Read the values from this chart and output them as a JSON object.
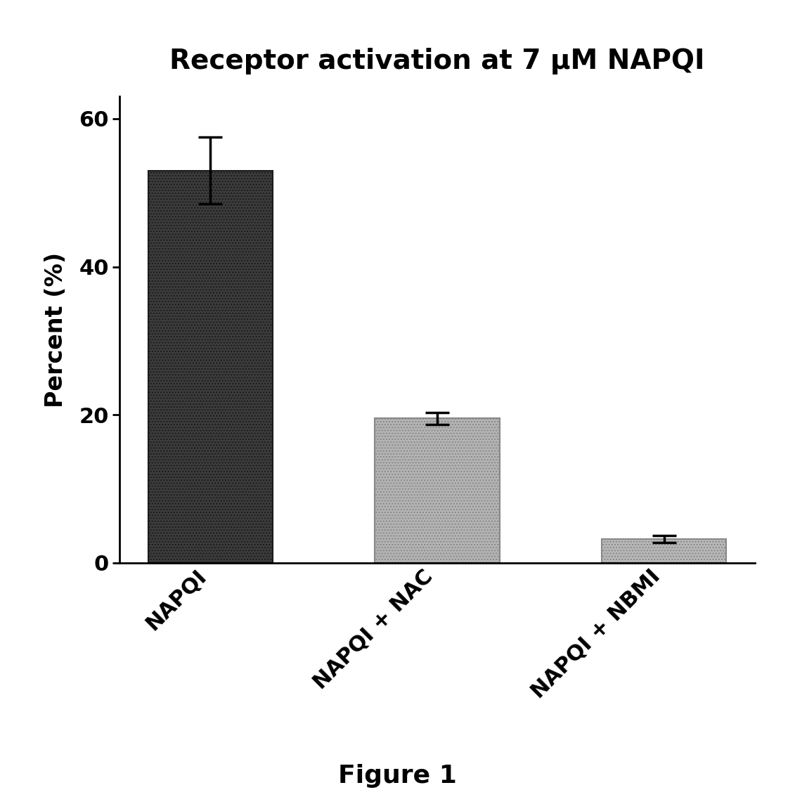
{
  "title": "Receptor activation at 7 μM NAPQI",
  "ylabel": "Percent (%)",
  "categories": [
    "NAPQI",
    "NAPQI + NAC",
    "NAPQI + NBMI"
  ],
  "values": [
    53.0,
    19.5,
    3.2
  ],
  "errors": [
    4.5,
    0.8,
    0.5
  ],
  "bar_colors": [
    "#3a3a3a",
    "#b0b0b0",
    "#b8b8b8"
  ],
  "bar_edgecolors": [
    "#000000",
    "#000000",
    "#000000"
  ],
  "ylim": [
    0,
    63
  ],
  "yticks": [
    0,
    20,
    40,
    60
  ],
  "figure_caption": "Figure 1",
  "title_fontsize": 28,
  "ylabel_fontsize": 24,
  "tick_fontsize": 22,
  "caption_fontsize": 26,
  "xtick_fontsize": 22,
  "background_color": "#ffffff",
  "bar_width": 0.55,
  "capsize": 12,
  "error_linewidth": 2.5,
  "spine_linewidth": 2.0
}
